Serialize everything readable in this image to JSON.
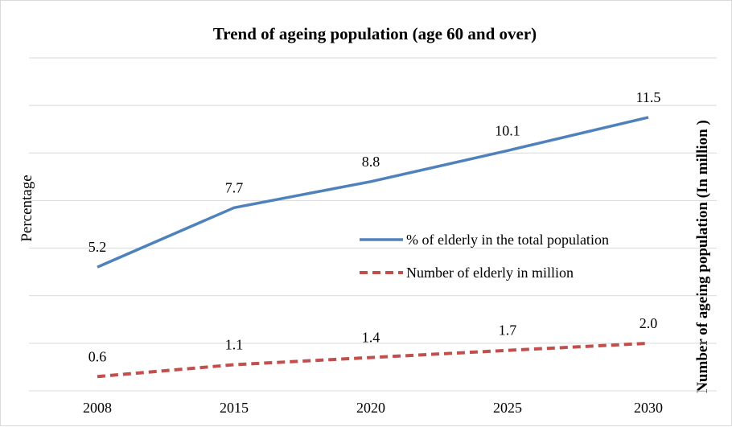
{
  "chart_data": {
    "type": "line",
    "title": "Trend of ageing population (age 60 and over)",
    "ylabel": "Percentage",
    "y2label": "Number of ageing population (In million  )",
    "xlabel": "",
    "categories": [
      "2008",
      "2015",
      "2020",
      "2025",
      "2030"
    ],
    "ylim": [
      0,
      14
    ],
    "y2lim": [
      0,
      14
    ],
    "grid": true,
    "legend_position": "center-right",
    "series": [
      {
        "name": "% of elderly in the total population",
        "values": [
          5.2,
          7.7,
          8.8,
          10.1,
          11.5
        ],
        "labels": [
          "5.2",
          "7.7",
          "8.8",
          "10.1",
          "11.5"
        ],
        "color": "#4f81bd",
        "style": "solid",
        "axis": "left"
      },
      {
        "name": "Number of elderly in million",
        "values": [
          0.6,
          1.1,
          1.4,
          1.7,
          2.0
        ],
        "labels": [
          "0.6",
          "1.1",
          "1.4",
          "1.7",
          "2.0"
        ],
        "color": "#c0504d",
        "style": "dashed",
        "axis": "right"
      }
    ]
  }
}
